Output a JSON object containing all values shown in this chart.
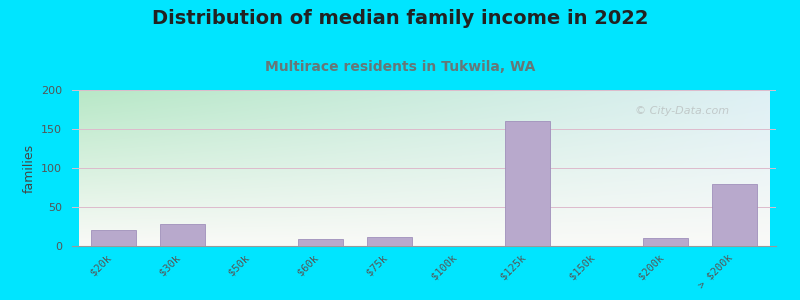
{
  "title": "Distribution of median family income in 2022",
  "subtitle": "Multirace residents in Tukwila, WA",
  "categories": [
    "$20k",
    "$30k",
    "$50k",
    "$60k",
    "$75k",
    "$100k",
    "$125k",
    "$150k",
    "$200k",
    "> $200k"
  ],
  "values": [
    20,
    28,
    0,
    9,
    11,
    0,
    160,
    0,
    10,
    80
  ],
  "bar_color": "#b8a9cc",
  "bar_edge_color": "#a090bb",
  "background_color": "#00e5ff",
  "plot_bg_top_left": "#b8e8c8",
  "plot_bg_top_right": "#ddeef5",
  "plot_bg_bottom": "#f8f8f4",
  "title_fontsize": 14,
  "title_color": "#222222",
  "subtitle_fontsize": 10,
  "subtitle_color": "#667777",
  "ylabel": "families",
  "ylim": [
    0,
    200
  ],
  "yticks": [
    0,
    50,
    100,
    150,
    200
  ],
  "grid_color": "#ddbbcc",
  "watermark": "© City-Data.com"
}
